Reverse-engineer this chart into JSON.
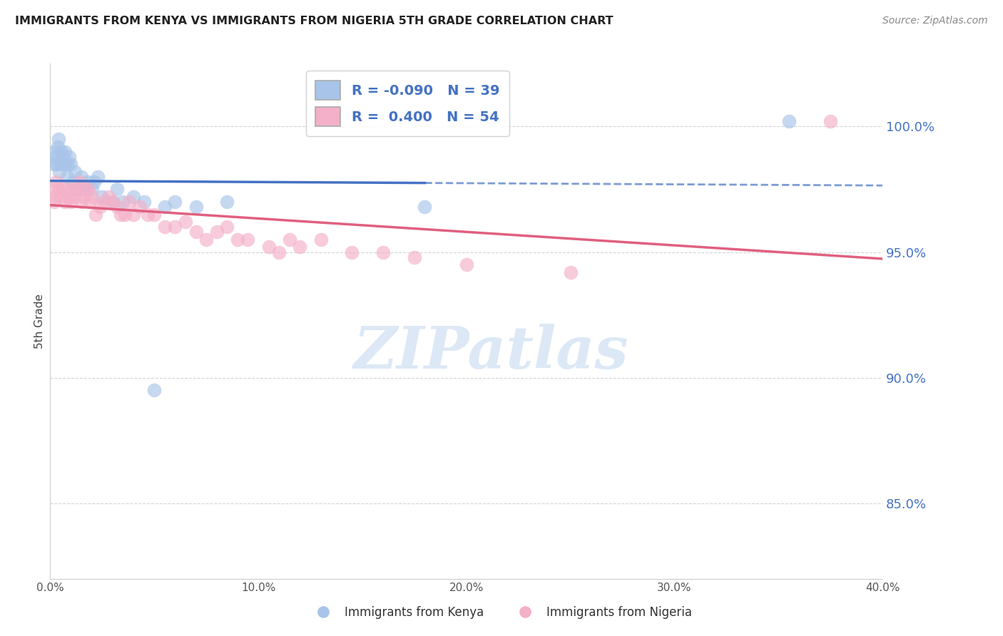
{
  "title": "IMMIGRANTS FROM KENYA VS IMMIGRANTS FROM NIGERIA 5TH GRADE CORRELATION CHART",
  "source": "Source: ZipAtlas.com",
  "ylabel": "5th Grade",
  "x_min": 0.0,
  "x_max": 40.0,
  "y_min": 82.0,
  "y_max": 102.5,
  "y_ticks": [
    85.0,
    90.0,
    95.0,
    100.0
  ],
  "y_tick_labels": [
    "85.0%",
    "90.0%",
    "95.0%",
    "100.0%"
  ],
  "kenya_R": "-0.090",
  "kenya_N": "39",
  "nigeria_R": "0.400",
  "nigeria_N": "54",
  "kenya_color": "#a8c4e8",
  "nigeria_color": "#f4b0c8",
  "kenya_line_color": "#4472c4",
  "nigeria_line_color": "#e06080",
  "kenya_scatter_x": [
    0.15,
    0.2,
    0.25,
    0.3,
    0.35,
    0.4,
    0.45,
    0.5,
    0.55,
    0.6,
    0.65,
    0.7,
    0.75,
    0.8,
    0.85,
    0.9,
    1.0,
    1.1,
    1.2,
    1.3,
    1.5,
    1.7,
    1.8,
    2.0,
    2.1,
    2.3,
    2.5,
    3.0,
    3.2,
    3.5,
    4.0,
    4.5,
    5.0,
    5.5,
    6.0,
    7.0,
    8.5,
    18.0,
    35.5
  ],
  "kenya_scatter_y": [
    98.5,
    99.0,
    98.8,
    98.5,
    99.2,
    99.5,
    98.2,
    98.5,
    99.0,
    98.5,
    98.8,
    99.0,
    98.5,
    98.0,
    98.5,
    98.8,
    98.5,
    97.8,
    98.2,
    97.5,
    98.0,
    97.5,
    97.8,
    97.5,
    97.8,
    98.0,
    97.2,
    97.0,
    97.5,
    97.0,
    97.2,
    97.0,
    89.5,
    96.8,
    97.0,
    96.8,
    97.0,
    96.8,
    100.2
  ],
  "nigeria_scatter_x": [
    0.15,
    0.2,
    0.25,
    0.3,
    0.4,
    0.5,
    0.6,
    0.7,
    0.8,
    0.9,
    1.0,
    1.1,
    1.2,
    1.3,
    1.4,
    1.5,
    1.6,
    1.7,
    1.8,
    1.9,
    2.0,
    2.2,
    2.4,
    2.6,
    2.8,
    3.0,
    3.2,
    3.4,
    3.6,
    3.8,
    4.0,
    4.3,
    4.7,
    5.0,
    5.5,
    6.0,
    6.5,
    7.0,
    7.5,
    8.0,
    8.5,
    9.0,
    9.5,
    10.5,
    11.0,
    11.5,
    12.0,
    13.0,
    14.5,
    16.0,
    17.5,
    20.0,
    25.0,
    37.5
  ],
  "nigeria_scatter_y": [
    97.5,
    97.0,
    97.2,
    97.8,
    97.5,
    97.2,
    97.5,
    97.0,
    97.5,
    97.2,
    97.0,
    97.5,
    97.2,
    97.5,
    97.8,
    97.0,
    97.2,
    97.5,
    97.5,
    97.0,
    97.2,
    96.5,
    96.8,
    97.0,
    97.2,
    97.0,
    96.8,
    96.5,
    96.5,
    97.0,
    96.5,
    96.8,
    96.5,
    96.5,
    96.0,
    96.0,
    96.2,
    95.8,
    95.5,
    95.8,
    96.0,
    95.5,
    95.5,
    95.2,
    95.0,
    95.5,
    95.2,
    95.5,
    95.0,
    95.0,
    94.8,
    94.5,
    94.2,
    100.2
  ],
  "kenya_trend_x_data_end": 18.0,
  "kenya_trend_x_dash_start": 18.0,
  "background_color": "#ffffff",
  "grid_color": "#d0d0d0",
  "watermark_text": "ZIPatlas",
  "watermark_color": "#dce8f5"
}
